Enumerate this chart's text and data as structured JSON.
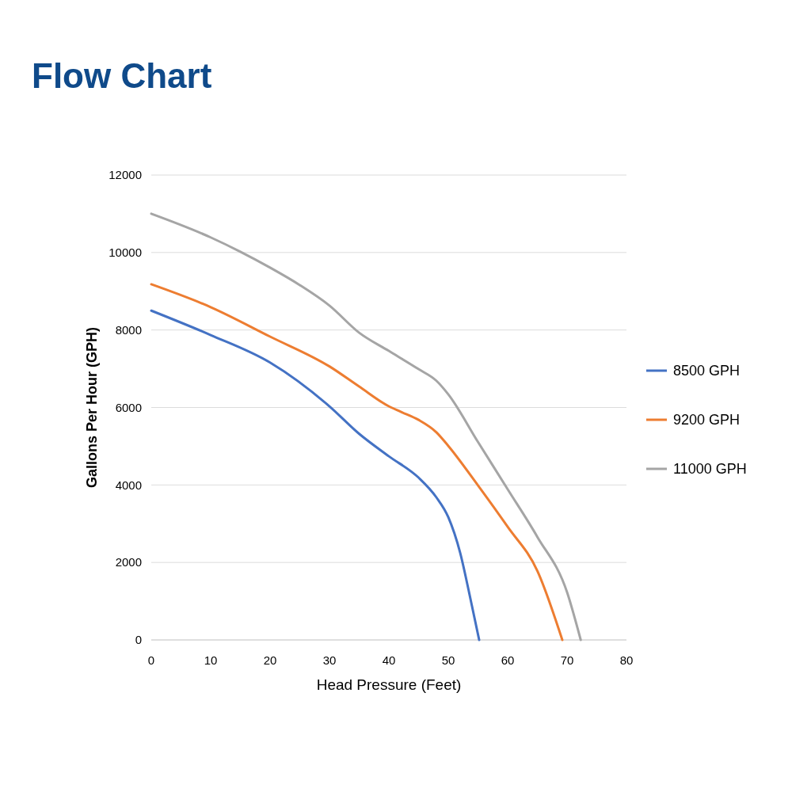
{
  "chart_data": {
    "type": "line",
    "title": "Flow Chart",
    "xlabel": "Head Pressure (Feet)",
    "ylabel": "Gallons Per Hour (GPH)",
    "xlim": [
      0,
      80
    ],
    "xticks": [
      0,
      10,
      20,
      30,
      40,
      50,
      60,
      70,
      80
    ],
    "ylim": [
      0,
      12000
    ],
    "yticks": [
      0,
      2000,
      4000,
      6000,
      8000,
      10000,
      12000
    ],
    "grid": "y",
    "legend": "right",
    "line_style": "solid",
    "marker": "none",
    "series": [
      {
        "name": "8500 GPH",
        "color": "#4472c4",
        "x": [
          0,
          10,
          20,
          30,
          35,
          40,
          45,
          48,
          50,
          52,
          53.5,
          55.2
        ],
        "values": [
          8500,
          7870,
          7160,
          6030,
          5320,
          4740,
          4190,
          3680,
          3170,
          2250,
          1230,
          0
        ]
      },
      {
        "name": "9200 GPH",
        "color": "#ed7d31",
        "x": [
          0,
          10,
          20,
          30,
          35,
          40,
          42,
          45,
          48,
          50,
          55,
          60,
          65,
          69.2
        ],
        "values": [
          9180,
          8590,
          7830,
          7060,
          6540,
          6030,
          5890,
          5680,
          5360,
          5010,
          3990,
          2920,
          1780,
          0
        ]
      },
      {
        "name": "11000 GPH",
        "color": "#a5a5a5",
        "x": [
          0,
          10,
          15,
          20,
          25,
          30,
          35,
          40,
          45,
          48,
          50,
          55,
          60,
          65,
          70,
          72.3
        ],
        "values": [
          11000,
          10390,
          10020,
          9610,
          9160,
          8630,
          7930,
          7460,
          6990,
          6690,
          6340,
          5110,
          3890,
          2660,
          1230,
          0
        ]
      }
    ]
  }
}
